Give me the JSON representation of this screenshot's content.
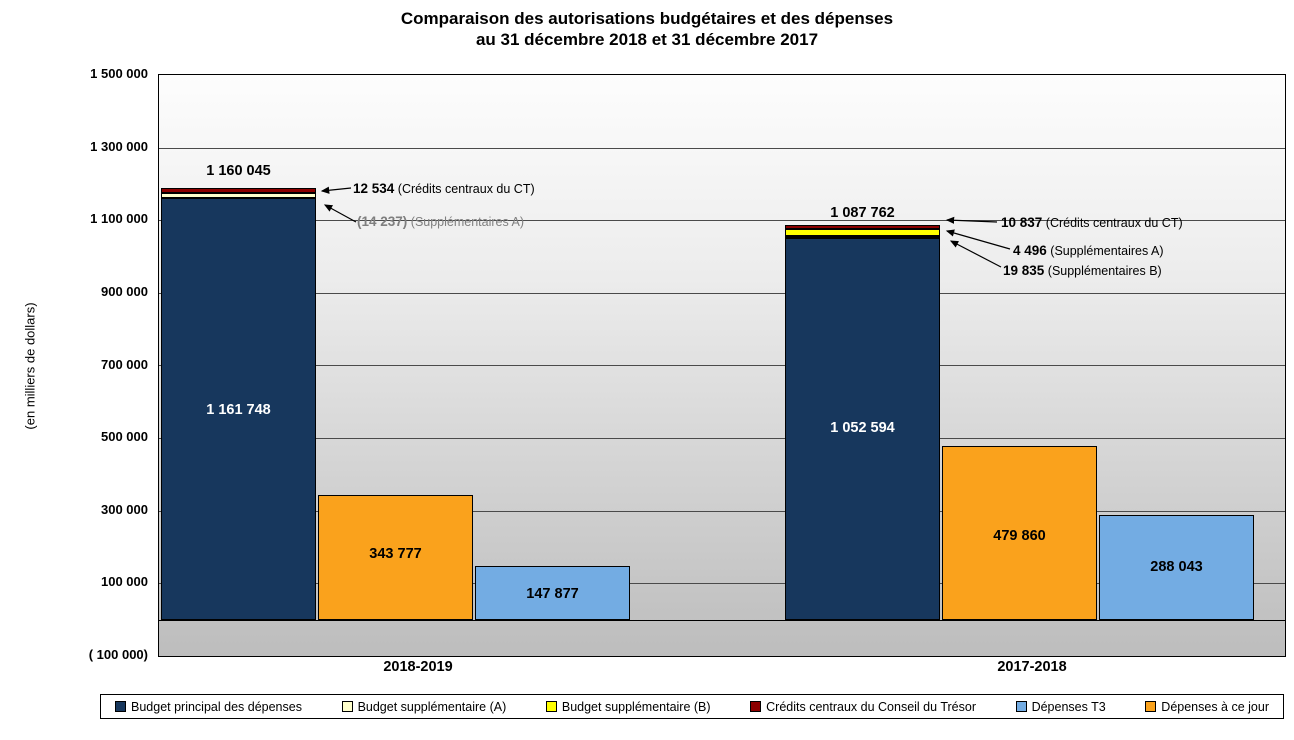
{
  "chart_data": {
    "type": "bar",
    "title_line1": "Comparaison des autorisations budgétaires et des dépenses",
    "title_line2": "au 31 décembre 2018 et 31 décembre 2017",
    "ylabel": "(en milliers de dollars)",
    "axis": {
      "ymin": -100000,
      "ymax": 1500000,
      "tick_step": 200000,
      "tick_labels": [
        "1 500 000",
        "1 300 000",
        "1 100 000",
        "900 000",
        "700 000",
        "500 000",
        "300 000",
        "100 000",
        "( 100 000)"
      ],
      "grid": true
    },
    "colors": {
      "principal": "#17375D",
      "suppl_a": "#FFFFCC",
      "suppl_b": "#FFFF00",
      "credits_ct": "#8B0000",
      "depenses_t3": "#73ACE3",
      "depenses_a_ce_jour": "#FAA21C"
    },
    "groups": [
      {
        "category": "2018-2019",
        "authorization": {
          "principal": 1161748,
          "principal_label": "1 161 748",
          "suppl_a": -14237,
          "credits_ct": 12534,
          "total": 1160045,
          "total_label": "1 160 045"
        },
        "depenses_a_ce_jour": 343777,
        "depenses_a_ce_jour_label": "343 777",
        "depenses_t3": 147877,
        "depenses_t3_label": "147 877",
        "annotations": [
          {
            "value": "12 534",
            "name": "(Crédits centraux du CT)"
          },
          {
            "value": "(14 237)",
            "name": "(Supplémentaires A)"
          }
        ]
      },
      {
        "category": "2017-2018",
        "authorization": {
          "principal": 1052594,
          "principal_label": "1 052 594",
          "suppl_a": 4496,
          "suppl_b": 19835,
          "credits_ct": 10837,
          "total": 1087762,
          "total_label": "1 087 762"
        },
        "depenses_a_ce_jour": 479860,
        "depenses_a_ce_jour_label": "479 860",
        "depenses_t3": 288043,
        "depenses_t3_label": "288 043",
        "annotations": [
          {
            "value": "10 837",
            "name": "(Crédits centraux du CT)"
          },
          {
            "value": "4 496",
            "name": "(Supplémentaires A)"
          },
          {
            "value": "19 835",
            "name": "(Supplémentaires B)"
          }
        ]
      }
    ],
    "legend": [
      {
        "label": "Budget principal des dépenses",
        "color": "#17375D"
      },
      {
        "label": "Budget supplémentaire (A)",
        "color": "#FFFFCC"
      },
      {
        "label": "Budget supplémentaire (B)",
        "color": "#FFFF00"
      },
      {
        "label": "Crédits centraux du Conseil du Trésor",
        "color": "#8B0000"
      },
      {
        "label": "Dépenses T3",
        "color": "#73ACE3"
      },
      {
        "label": "Dépenses à ce jour",
        "color": "#FAA21C"
      }
    ]
  }
}
